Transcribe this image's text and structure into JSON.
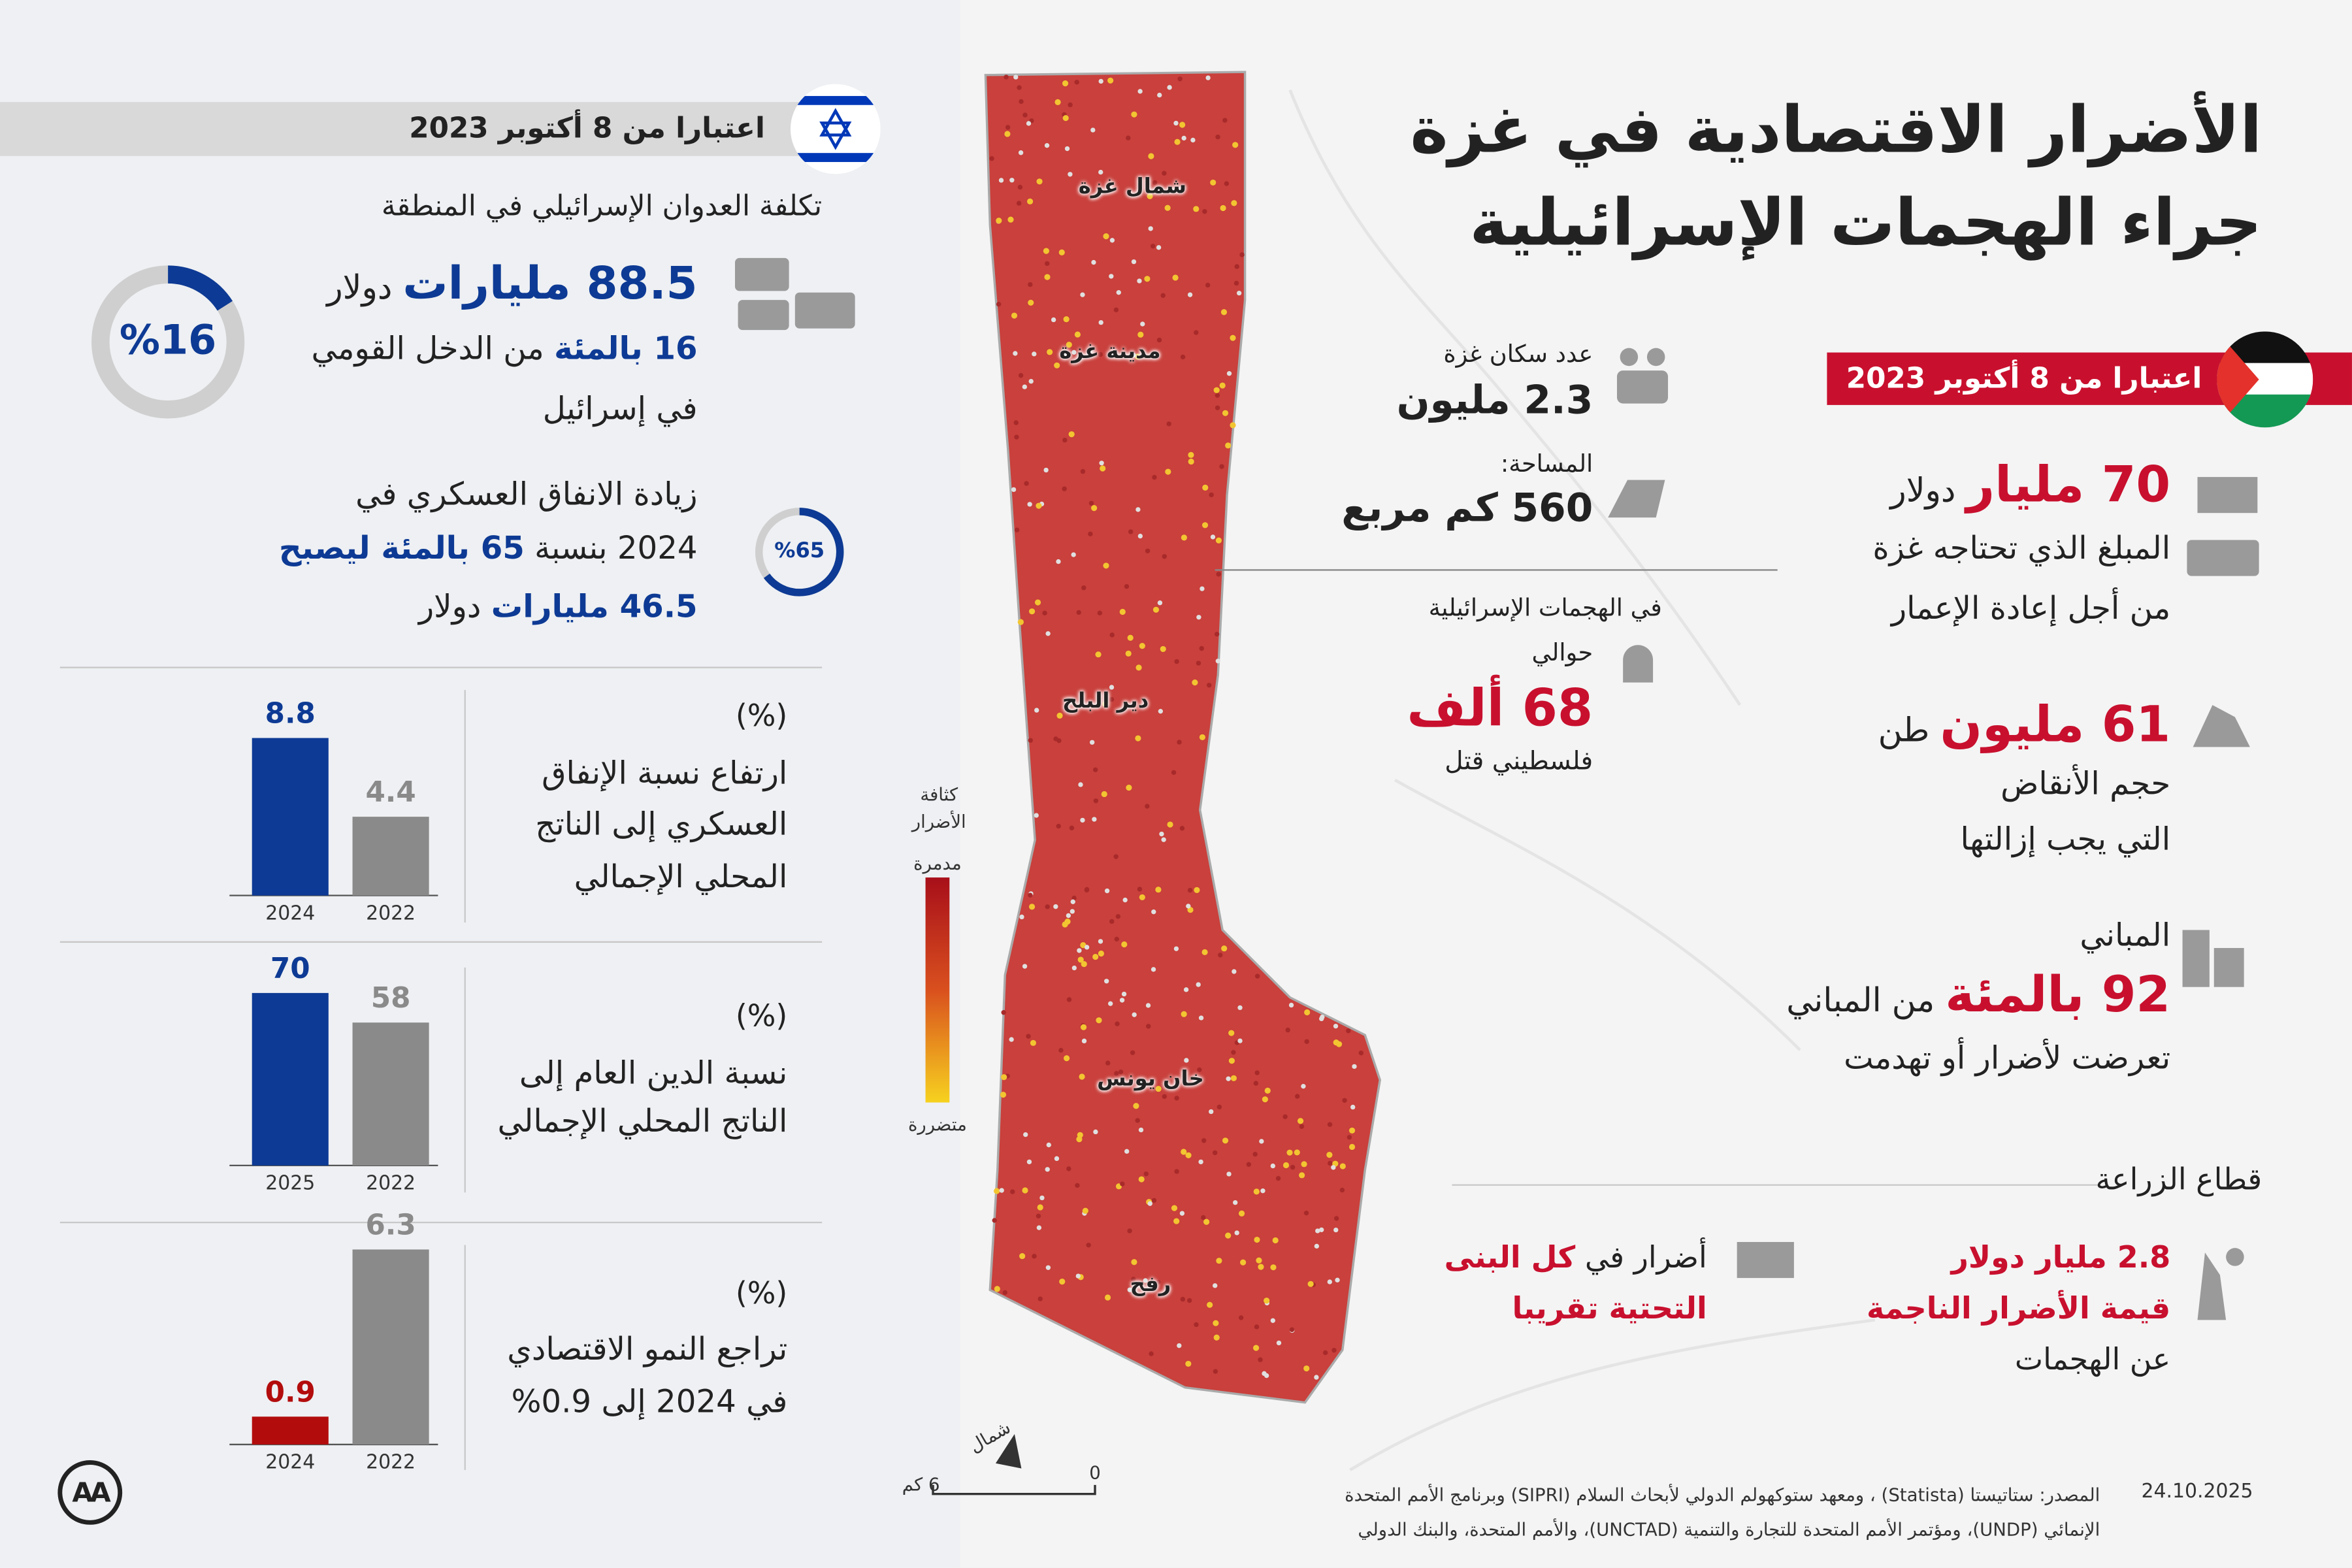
{
  "header": {
    "title_lines": [
      "الأضرار الاقتصادية في غزة",
      "جراء الهجمات الإسرائيلية"
    ]
  },
  "israel": {
    "date_banner": "اعتبارا من 8 أكتوبر 2023",
    "cost_heading": "تكلفة العدوان الإسرائيلي في المنطقة",
    "cost_value": "88.5 مليارات",
    "cost_unit": "دولار",
    "gni": {
      "highlight": "16 بالمئة",
      "rest": "من الدخل القومي",
      "line2": "في إسرائيل",
      "ring": {
        "value": 16,
        "label": "%16"
      }
    },
    "military": {
      "line1": "زيادة الانفاق العسكري في",
      "line2_prefix": "2024 بنسبة",
      "line2_highlight": "65 بالمئة ليصبح",
      "line3_highlight": "46.5 مليارات",
      "line3_unit": "دولار",
      "ring": {
        "value": 65,
        "label": "%65"
      }
    }
  },
  "chart_data": [
    {
      "type": "bar",
      "title": "(%)",
      "description": [
        "ارتفاع نسبة الإنفاق",
        "العسكري إلى الناتج",
        "المحلي الإجمالي"
      ],
      "categories": [
        "2024",
        "2022"
      ],
      "values": [
        8.8,
        4.4
      ],
      "colors": [
        "#0d3a94",
        "#8a8a8a"
      ]
    },
    {
      "type": "bar",
      "title": "(%)",
      "description": [
        "نسبة الدين العام إلى",
        "الناتج المحلي الإجمالي"
      ],
      "categories": [
        "2025",
        "2022"
      ],
      "values": [
        70,
        58
      ],
      "colors": [
        "#0d3a94",
        "#8a8a8a"
      ]
    },
    {
      "type": "bar",
      "title": "(%)",
      "description": [
        "تراجع النمو الاقتصادي",
        "في 2024 إلى 0.9%"
      ],
      "categories": [
        "2024",
        "2022"
      ],
      "values": [
        0.9,
        6.3
      ],
      "colors": [
        "#b30c0c",
        "#8a8a8a"
      ]
    }
  ],
  "gaza": {
    "date_banner": "اعتبارا من 8 أكتوبر 2023",
    "population": {
      "label": "عدد سكان غزة",
      "value": "2.3 مليون"
    },
    "area": {
      "label": "المساحة:",
      "value": "560 كم مربع"
    },
    "casualties": {
      "line1": "في الهجمات الإسرائيلية",
      "line2": "حوالي",
      "value": "68 ألف",
      "note": "فلسطيني قتل"
    },
    "reconstruction": {
      "value": "70 مليار",
      "unit": "دولار",
      "lines": [
        "المبلغ الذي تحتاجه غزة",
        "من أجل إعادة الإعمار"
      ]
    },
    "rubble": {
      "value": "61 مليون",
      "unit": "طن",
      "lines": [
        "حجم الأنقاض",
        "التي يجب إزالتها"
      ]
    },
    "buildings": {
      "label": "المباني",
      "value": "92 بالمئة",
      "rest": "من المباني",
      "line": "تعرضت لأضرار أو تهدمت"
    },
    "agriculture": {
      "heading": "قطاع الزراعة",
      "damage_lines": [
        "2.8 مليار دولار",
        "قيمة الأضرار الناجمة"
      ],
      "damage_note": "عن الهجمات",
      "infra_prefix": "أضرار في",
      "infra_highlight": "كل البنى",
      "infra_line2": "التحتية تقريبا"
    }
  },
  "map": {
    "labels": [
      "شمال غزة",
      "مدينة غزة",
      "دير البلح",
      "خان يونس",
      "رفح"
    ],
    "legend": {
      "title_lines": [
        "كثافة",
        "الأضرار"
      ],
      "high": "مدمرة",
      "low": "متضررة"
    },
    "scale": {
      "start": "0",
      "end": "6 كم"
    },
    "north": "شمال"
  },
  "footer": {
    "source_lines": [
      "المصدر: ستاتيستا (Statista) ، ومعهد ستوكهولم الدولي لأبحاث السلام (SIPRI) وبرنامج الأمم المتحدة",
      "الإنمائي (UNDP)، ومؤتمر الأمم المتحدة للتجارة والتنمية (UNCTAD)، والأمم المتحدة، والبنك الدولي"
    ],
    "date": "24.10.2025",
    "logo": "AA"
  }
}
